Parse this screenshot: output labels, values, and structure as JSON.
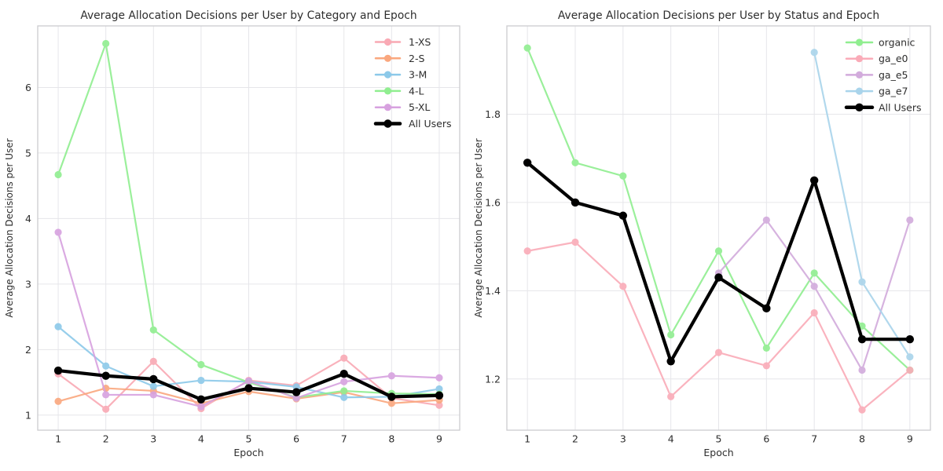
{
  "figure": {
    "background": "#ffffff",
    "grid_color": "#e6e6ea",
    "spine_color": "#cccccf",
    "text_color": "#2e2e2e",
    "all_users_color": "#000000"
  },
  "chart_data": [
    {
      "type": "line",
      "id": "category-chart",
      "title": "Average Allocation Decisions per User by Category and Epoch",
      "xlabel": "Epoch",
      "ylabel": "Average Allocation Decisions per User",
      "x": [
        1,
        2,
        3,
        4,
        5,
        6,
        7,
        8,
        9
      ],
      "xtick_labels": [
        "1",
        "2",
        "3",
        "4",
        "5",
        "6",
        "7",
        "8",
        "9"
      ],
      "xlim": [
        0.57,
        9.43
      ],
      "ylim": [
        0.77,
        6.94
      ],
      "yticks": [
        1,
        2,
        3,
        4,
        5,
        6
      ],
      "ytick_labels": [
        "1",
        "2",
        "3",
        "4",
        "5",
        "6"
      ],
      "grid": true,
      "legend_position": "upper right",
      "series": [
        {
          "name": "1-XS",
          "color": "#F9A9B4",
          "emphasis": false,
          "values": [
            1.63,
            1.09,
            1.82,
            1.1,
            1.53,
            1.45,
            1.87,
            1.26,
            1.15
          ]
        },
        {
          "name": "2-S",
          "color": "#FAA77E",
          "emphasis": false,
          "values": [
            1.21,
            1.41,
            1.37,
            1.18,
            1.36,
            1.25,
            1.35,
            1.18,
            1.23
          ]
        },
        {
          "name": "3-M",
          "color": "#8CC9E9",
          "emphasis": false,
          "values": [
            2.35,
            1.75,
            1.44,
            1.53,
            1.51,
            1.43,
            1.27,
            1.28,
            1.4
          ]
        },
        {
          "name": "4-L",
          "color": "#90EE90",
          "emphasis": false,
          "values": [
            4.67,
            6.67,
            2.3,
            1.77,
            1.5,
            1.27,
            1.37,
            1.33,
            1.32
          ]
        },
        {
          "name": "5-XL",
          "color": "#D7A1DF",
          "emphasis": false,
          "values": [
            3.79,
            1.31,
            1.31,
            1.13,
            1.52,
            1.26,
            1.51,
            1.6,
            1.57
          ]
        },
        {
          "name": "All Users",
          "color": "#000000",
          "emphasis": true,
          "values": [
            1.68,
            1.6,
            1.55,
            1.24,
            1.41,
            1.35,
            1.63,
            1.28,
            1.3
          ]
        }
      ]
    },
    {
      "type": "line",
      "id": "status-chart",
      "title": "Average Allocation Decisions per User by Status and Epoch",
      "xlabel": "Epoch",
      "ylabel": "Average Allocation Decisions per User",
      "x": [
        1,
        2,
        3,
        4,
        5,
        6,
        7,
        8,
        9
      ],
      "xtick_labels": [
        "1",
        "2",
        "3",
        "4",
        "5",
        "6",
        "7",
        "8",
        "9"
      ],
      "xlim": [
        0.57,
        9.43
      ],
      "ylim": [
        1.084,
        2.0
      ],
      "yticks": [
        1.2,
        1.4,
        1.6,
        1.8
      ],
      "ytick_labels": [
        "1.2",
        "1.4",
        "1.6",
        "1.8"
      ],
      "grid": true,
      "legend_position": "upper right",
      "series": [
        {
          "name": "organic",
          "color": "#90EE90",
          "emphasis": false,
          "values": [
            1.95,
            1.69,
            1.66,
            1.3,
            1.49,
            1.27,
            1.44,
            1.32,
            1.22
          ]
        },
        {
          "name": "ga_e0",
          "color": "#FAABB8",
          "emphasis": false,
          "values": [
            1.49,
            1.51,
            1.41,
            1.16,
            1.26,
            1.23,
            1.35,
            1.13,
            1.22
          ]
        },
        {
          "name": "ga_e5",
          "color": "#D2ABDC",
          "emphasis": false,
          "values": [
            null,
            null,
            null,
            null,
            1.44,
            1.56,
            1.41,
            1.22,
            1.56
          ]
        },
        {
          "name": "ga_e7",
          "color": "#A9D4EB",
          "emphasis": false,
          "values": [
            null,
            null,
            null,
            null,
            null,
            null,
            1.94,
            1.42,
            1.25
          ]
        },
        {
          "name": "All Users",
          "color": "#000000",
          "emphasis": true,
          "values": [
            1.69,
            1.6,
            1.57,
            1.24,
            1.43,
            1.36,
            1.65,
            1.29,
            1.29
          ]
        }
      ]
    }
  ]
}
